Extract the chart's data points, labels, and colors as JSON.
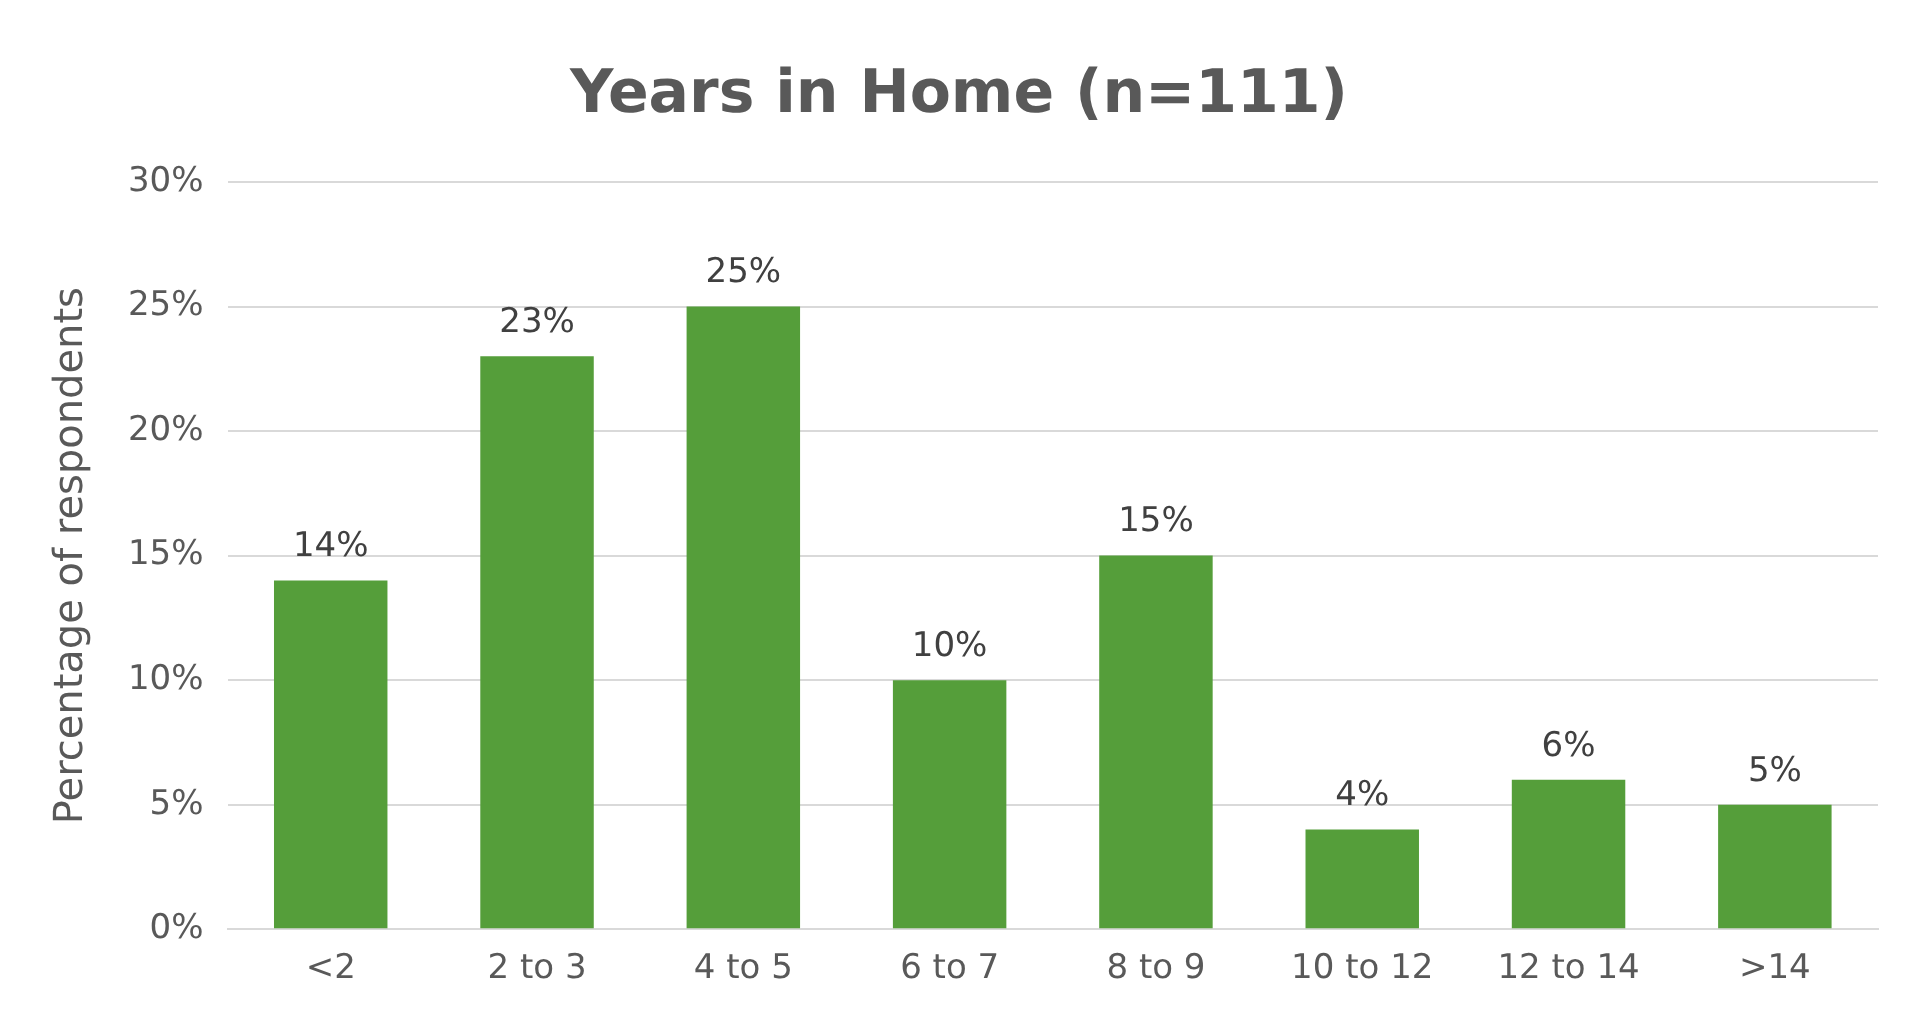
{
  "chart_data": {
    "type": "bar",
    "title": "Years in Home (n=111)",
    "ylabel": "Percentage of respondents",
    "categories": [
      "<2",
      "2 to 3",
      "4 to 5",
      "6 to 7",
      "8 to 9",
      "10 to 12",
      "12 to 14",
      ">14"
    ],
    "values": [
      14,
      23,
      25,
      10,
      15,
      4,
      6,
      5
    ],
    "value_labels": [
      "14%",
      "23%",
      "25%",
      "10%",
      "15%",
      "4%",
      "6%",
      "5%"
    ],
    "color": "#559e3a",
    "ylim": [
      0,
      30
    ],
    "yticks": [
      {
        "value": 0,
        "label": "0%"
      },
      {
        "value": 5,
        "label": "5%"
      },
      {
        "value": 10,
        "label": "10%"
      },
      {
        "value": 15,
        "label": "15%"
      },
      {
        "value": 20,
        "label": "20%"
      },
      {
        "value": 25,
        "label": "25%"
      },
      {
        "value": 30,
        "label": "30%"
      }
    ],
    "grid": "y",
    "legend": false
  }
}
